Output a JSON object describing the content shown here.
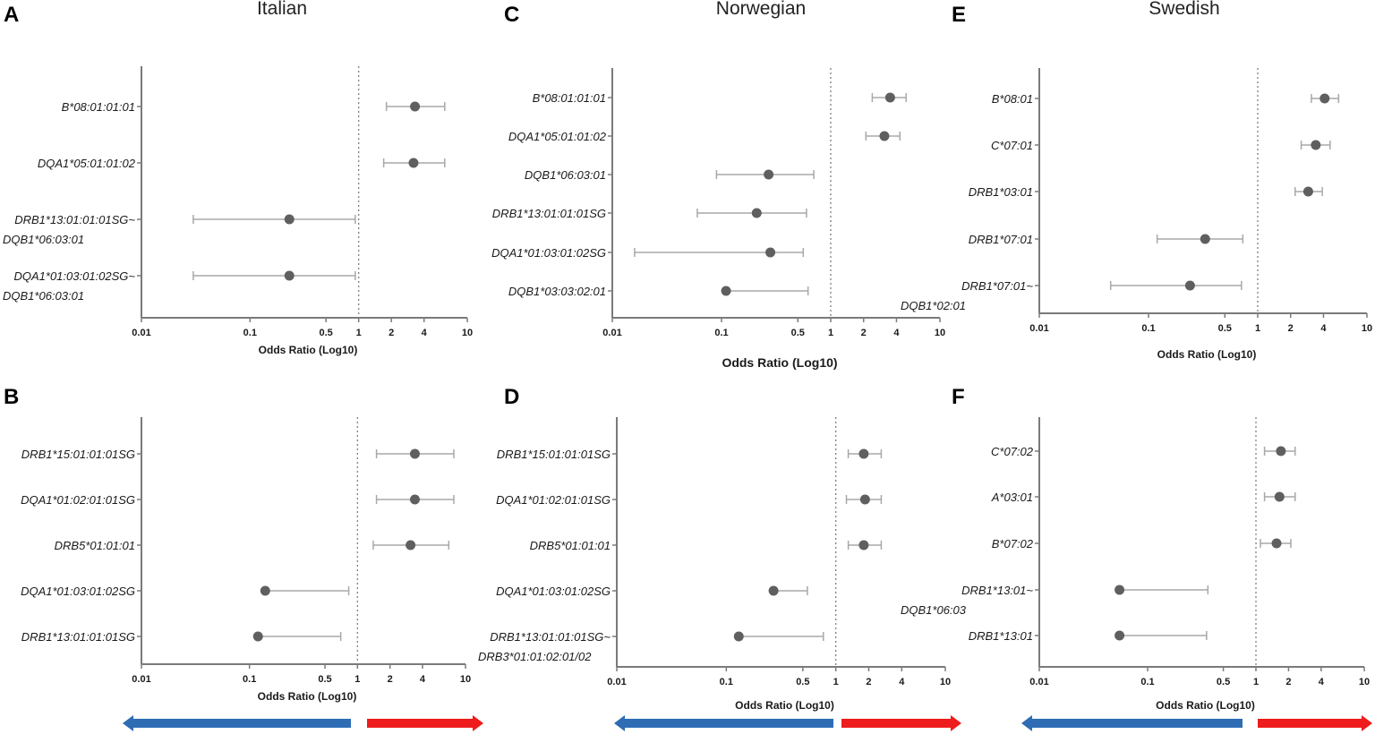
{
  "columns": [
    {
      "title": "Italian"
    },
    {
      "title": "Norwegian"
    },
    {
      "title": "Swedish"
    }
  ],
  "chart_data": [
    {
      "panel": "A",
      "type": "forest",
      "xscale": "log10",
      "xlim": [
        0.01,
        10
      ],
      "xticks": [
        "0.01",
        "0.1",
        "0.5",
        "1",
        "2",
        "4",
        "10"
      ],
      "xlabel": "Odds Ratio (Log10)",
      "reference_line": 1,
      "rows": [
        {
          "label": [
            "B*08:01:01:01"
          ],
          "or": 3.3,
          "low": 1.8,
          "high": 6.2
        },
        {
          "label": [
            "DQA1*05:01:01:02"
          ],
          "or": 3.2,
          "low": 1.7,
          "high": 6.2
        },
        {
          "label": [
            "DRB1*13:01:01:01SG~",
            "DQB1*06:03:01"
          ],
          "or": 0.23,
          "low": 0.03,
          "high": 0.93
        },
        {
          "label": [
            "DQA1*01:03:01:02SG~",
            "DQB1*06:03:01"
          ],
          "or": 0.23,
          "low": 0.03,
          "high": 0.93
        }
      ]
    },
    {
      "panel": "B",
      "type": "forest",
      "xscale": "log10",
      "xlim": [
        0.01,
        10
      ],
      "xticks": [
        "0.01",
        "0.1",
        "0.5",
        "1",
        "2",
        "4",
        "10"
      ],
      "xlabel": "Odds Ratio (Log10)",
      "reference_line": 1,
      "rows": [
        {
          "label": [
            "DRB1*15:01:01:01SG"
          ],
          "or": 3.4,
          "low": 1.5,
          "high": 7.8
        },
        {
          "label": [
            "DQA1*01:02:01:01SG"
          ],
          "or": 3.4,
          "low": 1.5,
          "high": 7.8
        },
        {
          "label": [
            "DRB5*01:01:01"
          ],
          "or": 3.1,
          "low": 1.4,
          "high": 7.0
        },
        {
          "label": [
            "DQA1*01:03:01:02SG"
          ],
          "or": 0.14,
          "low": 0.14,
          "high": 0.83
        },
        {
          "label": [
            "DRB1*13:01:01:01SG"
          ],
          "or": 0.12,
          "low": 0.12,
          "high": 0.7
        }
      ]
    },
    {
      "panel": "C",
      "type": "forest",
      "xscale": "log10",
      "xlim": [
        0.01,
        10
      ],
      "xticks": [
        "0.01",
        "0.1",
        "0.5",
        "1",
        "2",
        "4",
        "10"
      ],
      "xlabel": "Odds Ratio (Log10)",
      "reference_line": 1,
      "rows": [
        {
          "label": [
            "B*08:01:01:01"
          ],
          "or": 3.5,
          "low": 2.4,
          "high": 4.9
        },
        {
          "label": [
            "DQA1*05:01:01:02"
          ],
          "or": 3.1,
          "low": 2.1,
          "high": 4.3
        },
        {
          "label": [
            "DQB1*06:03:01"
          ],
          "or": 0.27,
          "low": 0.09,
          "high": 0.7
        },
        {
          "label": [
            "DRB1*13:01:01:01SG"
          ],
          "or": 0.21,
          "low": 0.06,
          "high": 0.6
        },
        {
          "label": [
            "DQA1*01:03:01:02SG"
          ],
          "or": 0.28,
          "low": 0.016,
          "high": 0.56
        },
        {
          "label": [
            "DQB1*03:03:02:01"
          ],
          "or": 0.11,
          "low": 0.11,
          "high": 0.62
        }
      ]
    },
    {
      "panel": "D",
      "type": "forest",
      "xscale": "log10",
      "xlim": [
        0.01,
        10
      ],
      "xticks": [
        "0.01",
        "0.1",
        "0.5",
        "1",
        "2",
        "4",
        "10"
      ],
      "xlabel": "Odds Ratio (Log10)",
      "reference_line": 1,
      "rows": [
        {
          "label": [
            "DRB1*15:01:01:01SG"
          ],
          "or": 1.8,
          "low": 1.3,
          "high": 2.6
        },
        {
          "label": [
            "DQA1*01:02:01:01SG"
          ],
          "or": 1.85,
          "low": 1.25,
          "high": 2.6
        },
        {
          "label": [
            "DRB5*01:01:01"
          ],
          "or": 1.8,
          "low": 1.3,
          "high": 2.6
        },
        {
          "label": [
            "DQA1*01:03:01:02SG"
          ],
          "or": 0.27,
          "low": 0.27,
          "high": 0.55
        },
        {
          "label": [
            "DRB1*13:01:01:01SG~",
            "DRB3*01:01:02:01/02"
          ],
          "or": 0.13,
          "low": 0.13,
          "high": 0.77
        }
      ]
    },
    {
      "panel": "E",
      "type": "forest",
      "xscale": "log10",
      "xlim": [
        0.01,
        10
      ],
      "xticks": [
        "0.01",
        "0.1",
        "0.5",
        "1",
        "2",
        "4",
        "10"
      ],
      "xlabel": "Odds Ratio (Log10)",
      "reference_line": 1,
      "rows": [
        {
          "label": [
            "B*08:01"
          ],
          "or": 4.1,
          "low": 3.1,
          "high": 5.5
        },
        {
          "label": [
            "C*07:01"
          ],
          "or": 3.4,
          "low": 2.5,
          "high": 4.6
        },
        {
          "label": [
            "DRB1*03:01"
          ],
          "or": 2.9,
          "low": 2.2,
          "high": 3.9
        },
        {
          "label": [
            "DRB1*07:01"
          ],
          "or": 0.33,
          "low": 0.12,
          "high": 0.73
        },
        {
          "label": [
            "DRB1*07:01~",
            "DQB1*02:01"
          ],
          "or": 0.24,
          "low": 0.045,
          "high": 0.71
        }
      ]
    },
    {
      "panel": "F",
      "type": "forest",
      "xscale": "log10",
      "xlim": [
        0.01,
        10
      ],
      "xticks": [
        "0.01",
        "0.1",
        "0.5",
        "1",
        "2",
        "4",
        "10"
      ],
      "xlabel": "Odds Ratio (Log10)",
      "reference_line": 1,
      "rows": [
        {
          "label": [
            "C*07:02"
          ],
          "or": 1.7,
          "low": 1.2,
          "high": 2.3
        },
        {
          "label": [
            "A*03:01"
          ],
          "or": 1.65,
          "low": 1.2,
          "high": 2.3
        },
        {
          "label": [
            "B*07:02"
          ],
          "or": 1.55,
          "low": 1.1,
          "high": 2.1
        },
        {
          "label": [
            "DRB1*13:01~",
            "DQB1*06:03"
          ],
          "or": 0.055,
          "low": 0.055,
          "high": 0.36
        },
        {
          "label": [
            "DRB1*13:01"
          ],
          "or": 0.055,
          "low": 0.055,
          "high": 0.35
        }
      ]
    }
  ],
  "colors": {
    "marker": "#5f5f5f",
    "errorbar": "#a8a8a8",
    "axis": "#7a7a7a",
    "refline": "#808080",
    "arrow_protective": "#2e6db4",
    "arrow_risk": "#ee1c1c"
  }
}
